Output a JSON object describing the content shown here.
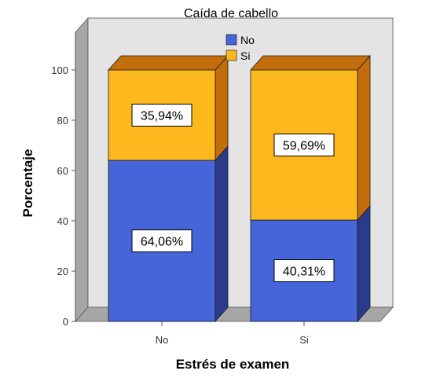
{
  "chart_data": {
    "type": "bar",
    "stacked": true,
    "style": "3d",
    "title": "Caída de cabello",
    "xlabel": "Estrés de examen",
    "ylabel": "Porcentaje",
    "categories": [
      "No",
      "Si"
    ],
    "ylim": [
      0,
      100
    ],
    "yticks": [
      "0",
      "20",
      "40",
      "60",
      "80",
      "100"
    ],
    "legend": {
      "position": "top-center",
      "entries": [
        "No",
        "Si"
      ]
    },
    "series": [
      {
        "name": "No",
        "values": [
          64.06,
          40.31
        ],
        "labels": [
          "64,06%",
          "40,31%"
        ],
        "color": "#4565D9"
      },
      {
        "name": "Si",
        "values": [
          35.94,
          59.69
        ],
        "labels": [
          "35,94%",
          "59,69%"
        ],
        "color": "#FDB81E"
      }
    ],
    "colors": {
      "no_side": "#2A3B8C",
      "si_side": "#C26E0C",
      "wall": "#E4E4E4",
      "floor": "#A6A6A6"
    }
  }
}
